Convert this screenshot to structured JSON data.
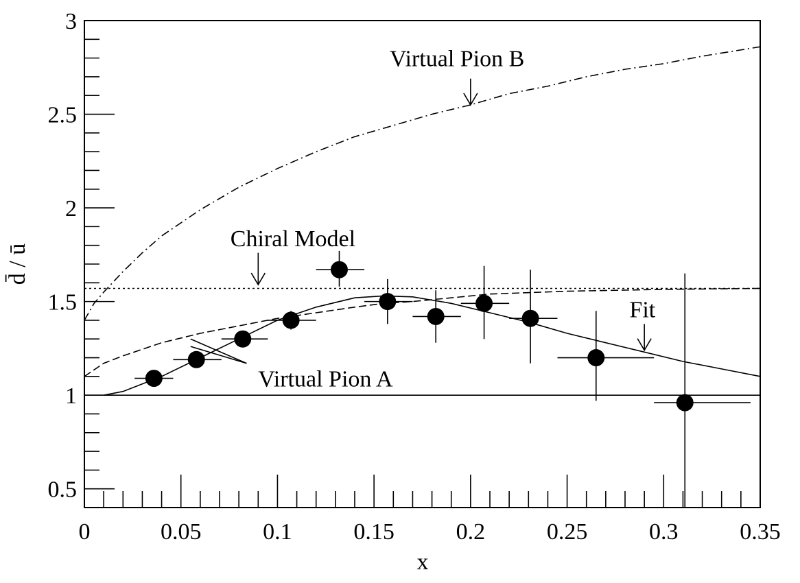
{
  "chart_data": {
    "type": "scatter",
    "xlabel": "x",
    "ylabel": "d̄ / ū",
    "xlim": [
      0,
      0.35
    ],
    "ylim": [
      0.4,
      3.0
    ],
    "x_ticks": [
      "0",
      "0.05",
      "0.1",
      "0.15",
      "0.2",
      "0.25",
      "0.3",
      "0.35"
    ],
    "x_tick_values": [
      0,
      0.05,
      0.1,
      0.15,
      0.2,
      0.25,
      0.3,
      0.35
    ],
    "y_ticks": [
      "0.5",
      "1",
      "1.5",
      "2",
      "2.5",
      "3"
    ],
    "y_tick_values": [
      0.5,
      1.0,
      1.5,
      2.0,
      2.5,
      3.0
    ],
    "reference_line": {
      "y": 1.0
    },
    "points": [
      {
        "x": 0.036,
        "y": 1.09,
        "xerr": [
          0.026,
          0.046
        ],
        "yerr": [
          1.07,
          1.11
        ]
      },
      {
        "x": 0.058,
        "y": 1.19,
        "xerr": [
          0.046,
          0.071
        ],
        "yerr": [
          1.15,
          1.23
        ]
      },
      {
        "x": 0.082,
        "y": 1.3,
        "xerr": [
          0.071,
          0.095
        ],
        "yerr": [
          1.26,
          1.34
        ]
      },
      {
        "x": 0.107,
        "y": 1.4,
        "xerr": [
          0.095,
          0.12
        ],
        "yerr": [
          1.35,
          1.45
        ]
      },
      {
        "x": 0.132,
        "y": 1.67,
        "xerr": [
          0.12,
          0.145
        ],
        "yerr": [
          1.58,
          1.77
        ]
      },
      {
        "x": 0.157,
        "y": 1.5,
        "xerr": [
          0.145,
          0.17
        ],
        "yerr": [
          1.38,
          1.62
        ]
      },
      {
        "x": 0.182,
        "y": 1.42,
        "xerr": [
          0.17,
          0.195
        ],
        "yerr": [
          1.28,
          1.56
        ]
      },
      {
        "x": 0.207,
        "y": 1.49,
        "xerr": [
          0.195,
          0.22
        ],
        "yerr": [
          1.3,
          1.69
        ]
      },
      {
        "x": 0.231,
        "y": 1.41,
        "xerr": [
          0.22,
          0.245
        ],
        "yerr": [
          1.17,
          1.67
        ]
      },
      {
        "x": 0.265,
        "y": 1.2,
        "xerr": [
          0.245,
          0.295
        ],
        "yerr": [
          0.97,
          1.45
        ]
      },
      {
        "x": 0.311,
        "y": 0.96,
        "xerr": [
          0.295,
          0.345
        ],
        "yerr": [
          0.4,
          1.65
        ]
      }
    ],
    "curves": [
      {
        "dash": "solid",
        "x": [
          0.01,
          0.02,
          0.04,
          0.06,
          0.08,
          0.1,
          0.12,
          0.14,
          0.155,
          0.17,
          0.19,
          0.21,
          0.23,
          0.25,
          0.27,
          0.29,
          0.31,
          0.33,
          0.35
        ],
        "y": [
          1.0,
          1.02,
          1.1,
          1.2,
          1.3,
          1.4,
          1.47,
          1.52,
          1.53,
          1.525,
          1.49,
          1.44,
          1.39,
          1.33,
          1.28,
          1.23,
          1.18,
          1.14,
          1.1
        ]
      },
      {
        "dash": "dashed",
        "x": [
          0.0,
          0.01,
          0.02,
          0.04,
          0.06,
          0.08,
          0.1,
          0.12,
          0.14,
          0.155,
          0.17,
          0.19,
          0.21,
          0.25,
          0.3,
          0.35
        ],
        "y": [
          1.1,
          1.17,
          1.21,
          1.28,
          1.33,
          1.37,
          1.41,
          1.44,
          1.47,
          1.49,
          1.5,
          1.52,
          1.54,
          1.555,
          1.565,
          1.57
        ]
      },
      {
        "dash": "dotted",
        "x": [
          0.0,
          0.35
        ],
        "y": [
          1.57,
          1.57
        ]
      },
      {
        "dash": "dashdot",
        "x": [
          0.0,
          0.005,
          0.01,
          0.02,
          0.03,
          0.04,
          0.06,
          0.08,
          0.1,
          0.12,
          0.14,
          0.16,
          0.18,
          0.2,
          0.22,
          0.24,
          0.26,
          0.28,
          0.3,
          0.32,
          0.35
        ],
        "y": [
          1.4,
          1.49,
          1.55,
          1.66,
          1.76,
          1.85,
          1.99,
          2.11,
          2.21,
          2.3,
          2.38,
          2.44,
          2.5,
          2.55,
          2.61,
          2.65,
          2.7,
          2.74,
          2.77,
          2.81,
          2.86
        ]
      }
    ],
    "annotations": [
      {
        "text": "Virtual Pion B",
        "x": 0.193,
        "y": 2.8,
        "arrow": {
          "from_y": 2.69,
          "to_x": 0.2,
          "to_y": 2.55
        }
      },
      {
        "text": "Chiral Model",
        "x": 0.108,
        "y": 1.84,
        "arrow": {
          "from_y": 1.76,
          "to_x": 0.09,
          "to_y": 1.59
        }
      },
      {
        "text": "Fit",
        "x": 0.289,
        "y": 1.46,
        "arrow": {
          "from_y": 1.38,
          "to_x": 0.29,
          "to_y": 1.24
        }
      },
      {
        "text": "Virtual Pion A",
        "x": 0.09,
        "y": 1.09,
        "pointers": [
          {
            "from_x": 0.084,
            "from_y": 1.17,
            "to_x": 0.055,
            "to_y": 1.3
          },
          {
            "from_x": 0.084,
            "from_y": 1.17,
            "to_x": 0.055,
            "to_y": 1.26
          }
        ]
      }
    ]
  }
}
